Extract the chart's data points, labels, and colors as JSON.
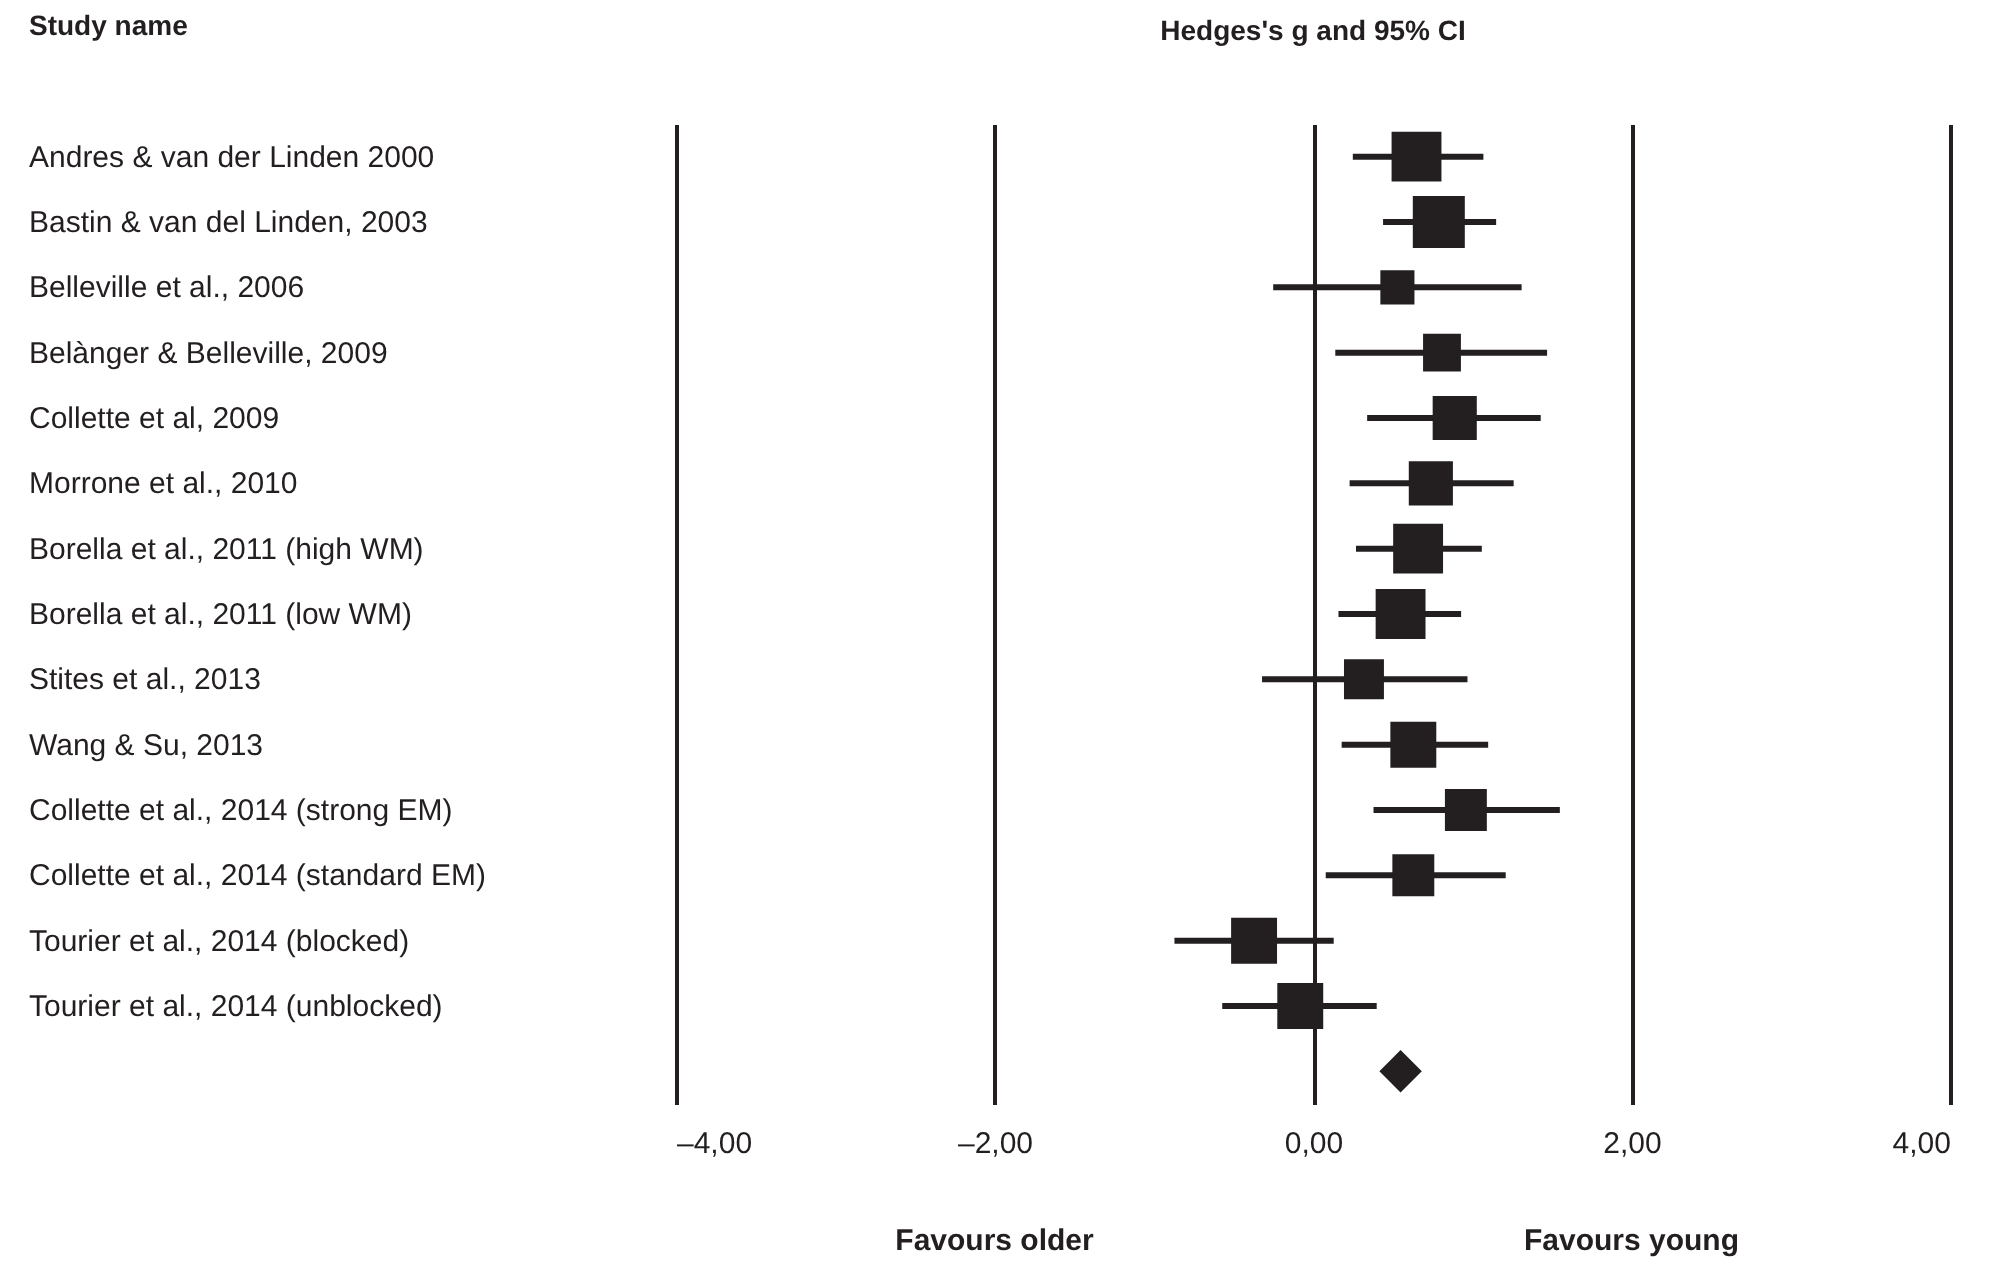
{
  "chart_data": {
    "type": "scatter",
    "orientation": "horizontal",
    "title": "Hedges's g and 95% CI",
    "ylabel": "Study name",
    "categories": [
      "Andres & van der Linden 2000",
      "Bastin & van del Linden, 2003",
      "Belleville et al., 2006",
      "Belànger & Belleville, 2009",
      "Collette et al, 2009",
      "Morrone et al., 2010",
      "Borella et al., 2011 (high WM)",
      "Borella et al., 2011 (low WM)",
      "Stites et al., 2013",
      "Wang & Su, 2013",
      "Collette et al., 2014 (strong EM)",
      "Collette et al., 2014 (standard EM)",
      "Tourier et al., 2014 (blocked)",
      "Tourier et al., 2014 (unblocked)",
      null
    ],
    "series": [
      {
        "color": "#231f20",
        "marker": "square",
        "values": [
          0.65,
          0.79,
          0.53,
          0.81,
          0.89,
          0.74,
          0.66,
          0.55,
          0.32,
          0.63,
          0.96,
          0.63,
          -0.37,
          -0.08,
          null
        ],
        "errors": [
          [
            0.25,
            1.07
          ],
          [
            0.44,
            1.15
          ],
          [
            -0.25,
            1.31
          ],
          [
            0.14,
            1.47
          ],
          [
            0.34,
            1.43
          ],
          [
            0.23,
            1.26
          ],
          [
            0.27,
            1.06
          ],
          [
            0.16,
            0.93
          ],
          [
            -0.32,
            0.97
          ],
          [
            0.18,
            1.1
          ],
          [
            0.38,
            1.55
          ],
          [
            0.08,
            1.21
          ],
          [
            -0.87,
            0.13
          ],
          [
            -0.57,
            0.4
          ],
          null
        ],
        "sizes": [
          0.92,
          1,
          0.43,
          0.53,
          0.72,
          0.72,
          0.92,
          0.92,
          0.59,
          0.78,
          0.65,
          0.65,
          0.78,
          0.78,
          null
        ]
      },
      {
        "color": "#231f20",
        "marker": "diamond",
        "values": [
          null,
          null,
          null,
          null,
          null,
          null,
          null,
          null,
          null,
          null,
          null,
          null,
          null,
          null,
          0.55
        ]
      }
    ],
    "xlim": [
      -4,
      4
    ],
    "xticks": [
      {
        "value": -4,
        "label": "–4,00"
      },
      {
        "value": -2,
        "label": "–2,00"
      },
      {
        "value": 0,
        "label": "0,00"
      },
      {
        "value": 2,
        "label": "2,00"
      },
      {
        "value": 4,
        "label": "4,00"
      }
    ],
    "grid": "x",
    "annotations": [
      "Favours older",
      "Favours young"
    ]
  }
}
